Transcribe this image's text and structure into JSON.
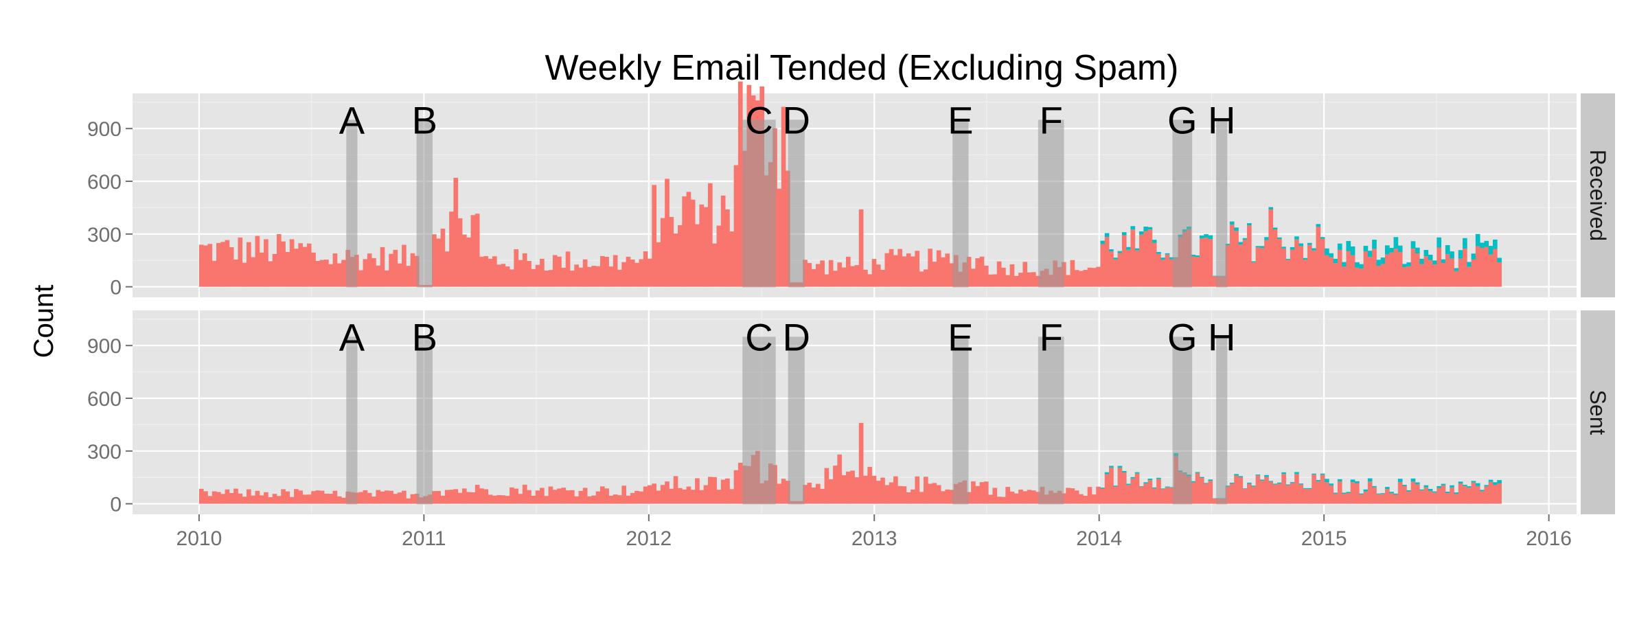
{
  "chart_data": {
    "type": "bar",
    "title": "Weekly Email Tended (Excluding Spam)",
    "ylabel": "Count",
    "xlabel": "",
    "x_ticks": [
      "2010",
      "2011",
      "2012",
      "2013",
      "2014",
      "2015",
      "2016"
    ],
    "x_range": [
      "2009-09-15",
      "2016-02-15"
    ],
    "ylim": [
      -60,
      1100
    ],
    "y_ticks": [
      0,
      300,
      600,
      900
    ],
    "grid": true,
    "legend": "none",
    "stacked": true,
    "colors": {
      "primary": "#f8766d",
      "secondary": "#00bfc4",
      "event_shade": "#999999"
    },
    "facets": [
      {
        "label": "Received",
        "segments": [
          {
            "start": "2010-01-01",
            "end": "2010-06-30",
            "mean": 210
          },
          {
            "start": "2010-07-01",
            "end": "2010-12-31",
            "mean": 165
          },
          {
            "start": "2011-01-01",
            "end": "2011-03-31",
            "mean": 360
          },
          {
            "start": "2011-04-01",
            "end": "2011-06-30",
            "mean": 150
          },
          {
            "start": "2011-07-01",
            "end": "2011-12-31",
            "mean": 145
          },
          {
            "start": "2012-01-01",
            "end": "2012-05-15",
            "mean": 430
          },
          {
            "start": "2012-05-16",
            "end": "2012-08-10",
            "mean": 920
          },
          {
            "start": "2012-08-11",
            "end": "2012-12-31",
            "mean": 120
          },
          {
            "start": "2013-01-01",
            "end": "2013-06-30",
            "mean": 150
          },
          {
            "start": "2013-07-01",
            "end": "2013-12-31",
            "mean": 110
          },
          {
            "start": "2014-01-01",
            "end": "2014-06-30",
            "mean": 230
          },
          {
            "start": "2014-07-01",
            "end": "2014-12-31",
            "mean": 250
          },
          {
            "start": "2015-01-01",
            "end": "2015-10-15",
            "mean": 160
          }
        ],
        "spikes": [
          {
            "date": "2011-02-18",
            "value": 620
          },
          {
            "date": "2012-06-22",
            "value": 1060
          },
          {
            "date": "2012-12-10",
            "value": 440
          },
          {
            "date": "2014-10-01",
            "value": 440
          }
        ],
        "dips": [
          {
            "date": "2010-12-28",
            "value": 10
          },
          {
            "date": "2012-08-25",
            "value": 25
          },
          {
            "date": "2014-07-14",
            "value": 60
          }
        ],
        "secondary": [
          {
            "start": "2010-01-01",
            "end": "2013-12-31",
            "share": 0.0
          },
          {
            "start": "2014-01-01",
            "end": "2014-06-30",
            "share": 0.06
          },
          {
            "start": "2014-07-01",
            "end": "2014-12-31",
            "share": 0.05
          },
          {
            "start": "2015-01-01",
            "end": "2015-10-15",
            "share": 0.22
          }
        ]
      },
      {
        "label": "Sent",
        "segments": [
          {
            "start": "2010-01-01",
            "end": "2010-06-30",
            "mean": 60
          },
          {
            "start": "2010-07-01",
            "end": "2010-12-31",
            "mean": 55
          },
          {
            "start": "2011-01-01",
            "end": "2011-06-30",
            "mean": 80
          },
          {
            "start": "2011-07-01",
            "end": "2011-12-31",
            "mean": 75
          },
          {
            "start": "2012-01-01",
            "end": "2012-05-15",
            "mean": 110
          },
          {
            "start": "2012-05-16",
            "end": "2012-08-10",
            "mean": 200
          },
          {
            "start": "2012-08-11",
            "end": "2012-12-31",
            "mean": 150
          },
          {
            "start": "2013-01-01",
            "end": "2013-06-30",
            "mean": 110
          },
          {
            "start": "2013-07-01",
            "end": "2013-12-31",
            "mean": 70
          },
          {
            "start": "2014-01-01",
            "end": "2014-06-30",
            "mean": 150
          },
          {
            "start": "2014-07-01",
            "end": "2014-12-31",
            "mean": 120
          },
          {
            "start": "2015-01-01",
            "end": "2015-10-15",
            "mean": 90
          }
        ],
        "spikes": [
          {
            "date": "2012-12-10",
            "value": 460
          },
          {
            "date": "2012-11-05",
            "value": 280
          },
          {
            "date": "2012-06-22",
            "value": 300
          },
          {
            "date": "2014-05-01",
            "value": 270
          }
        ],
        "dips": [
          {
            "date": "2012-08-25",
            "value": 15
          },
          {
            "date": "2014-07-14",
            "value": 30
          }
        ],
        "secondary": [
          {
            "start": "2010-01-01",
            "end": "2013-12-31",
            "share": 0.0
          },
          {
            "start": "2014-01-01",
            "end": "2014-12-31",
            "share": 0.05
          },
          {
            "start": "2015-01-01",
            "end": "2015-10-15",
            "share": 0.12
          }
        ]
      }
    ],
    "events": [
      {
        "label": "A",
        "start": "2010-08-28",
        "end": "2010-09-15"
      },
      {
        "label": "B",
        "start": "2010-12-20",
        "end": "2011-01-15"
      },
      {
        "label": "C",
        "start": "2012-06-01",
        "end": "2012-07-25"
      },
      {
        "label": "D",
        "start": "2012-08-14",
        "end": "2012-09-10"
      },
      {
        "label": "E",
        "start": "2013-05-08",
        "end": "2013-06-03"
      },
      {
        "label": "F",
        "start": "2013-09-24",
        "end": "2013-11-05"
      },
      {
        "label": "G",
        "start": "2014-04-30",
        "end": "2014-06-01"
      },
      {
        "label": "H",
        "start": "2014-07-10",
        "end": "2014-07-28"
      }
    ],
    "event_shade_height": 950,
    "start_week": "2010-01-01",
    "end_week": "2015-10-12"
  }
}
